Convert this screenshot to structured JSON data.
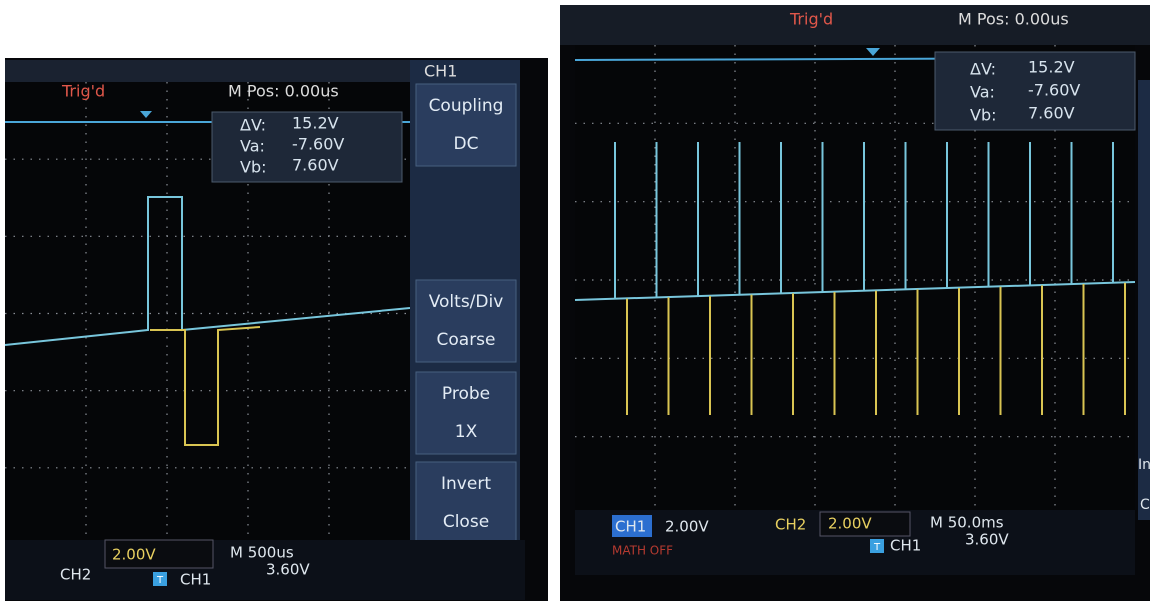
{
  "left_screen": {
    "header": {
      "trigger": "Trig'd",
      "position": "M Pos: 0.00us",
      "channel": "CH1"
    },
    "readout": {
      "delta_label": "ΔV:",
      "delta_value": "15.2V",
      "va_label": "Va:",
      "va_value": "-7.60V",
      "vb_label": "Vb:",
      "vb_value": "7.60V"
    },
    "menu": {
      "items": [
        {
          "label": "Coupling",
          "value": "DC"
        },
        {
          "label": "Volts/Div",
          "value": "Coarse"
        },
        {
          "label": "Probe",
          "value": "1X"
        },
        {
          "label": "Invert",
          "value": "Close"
        }
      ]
    },
    "footer": {
      "ch2_label": "CH2",
      "ch2_scale": "2.00V",
      "timebase": "M 500us",
      "trigger_icon": "T",
      "trigger_source": "CH1",
      "trigger_level": "3.60V"
    }
  },
  "right_screen": {
    "header": {
      "trigger": "Trig'd",
      "position": "M Pos: 0.00us"
    },
    "readout": {
      "delta_label": "ΔV:",
      "delta_value": "15.2V",
      "va_label": "Va:",
      "va_value": "-7.60V",
      "vb_label": "Vb:",
      "vb_value": "7.60V"
    },
    "footer": {
      "ch1_label": "CH1",
      "ch1_scale": "2.00V",
      "ch2_label": "CH2",
      "ch2_scale": "2.00V",
      "timebase": "M 50.0ms",
      "trigger_icon": "T",
      "trigger_source": "CH1",
      "trigger_level": "3.60V",
      "math": "MATH OFF"
    },
    "menu_edge": {
      "item_a": "In",
      "item_b": "C"
    }
  }
}
